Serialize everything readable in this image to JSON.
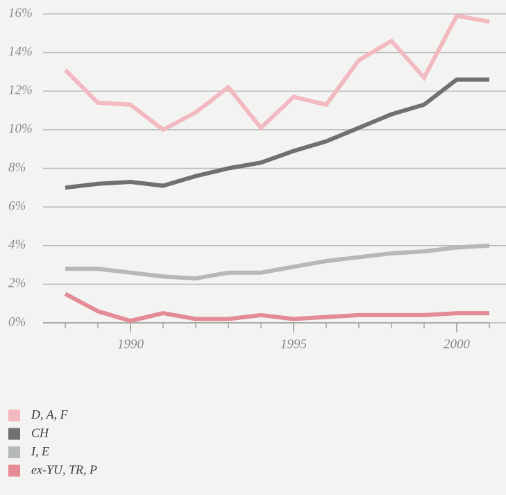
{
  "chart_data": {
    "type": "line",
    "x": [
      1988,
      1989,
      1990,
      1991,
      1992,
      1993,
      1994,
      1995,
      1996,
      1997,
      1998,
      1999,
      2000,
      2001
    ],
    "xlim": [
      1987.5,
      2001
    ],
    "xticks": [
      1990,
      1995,
      2000
    ],
    "ylim": [
      0,
      16
    ],
    "yticks": [
      {
        "value": 0,
        "label": "0%"
      },
      {
        "value": 2,
        "label": "2%"
      },
      {
        "value": 4,
        "label": "4%"
      },
      {
        "value": 6,
        "label": "6%"
      },
      {
        "value": 8,
        "label": "8%"
      },
      {
        "value": 10,
        "label": "10%"
      },
      {
        "value": 12,
        "label": "12%"
      },
      {
        "value": 14,
        "label": "14%"
      },
      {
        "value": 16,
        "label": "16%"
      }
    ],
    "grid": true,
    "legend": "bottom-left",
    "series": [
      {
        "name": "D, A, F",
        "color": "#f2b9c1",
        "values": [
          13.1,
          11.4,
          11.3,
          10.0,
          10.9,
          12.2,
          10.1,
          11.7,
          11.3,
          13.6,
          14.6,
          12.7,
          15.9,
          15.6
        ]
      },
      {
        "name": "CH",
        "color": "#6f7071",
        "values": [
          7.0,
          7.2,
          7.3,
          7.1,
          7.6,
          8.0,
          8.3,
          8.9,
          9.4,
          10.1,
          10.8,
          11.3,
          12.6,
          12.6
        ]
      },
      {
        "name": "I, E",
        "color": "#b6b9b9",
        "values": [
          2.8,
          2.8,
          2.6,
          2.4,
          2.3,
          2.6,
          2.6,
          2.9,
          3.2,
          3.4,
          3.6,
          3.7,
          3.9,
          4.0
        ]
      },
      {
        "name": "ex-YU, TR, P",
        "color": "#e48b95",
        "values": [
          1.5,
          0.6,
          0.1,
          0.5,
          0.2,
          0.2,
          0.4,
          0.2,
          0.3,
          0.4,
          0.4,
          0.4,
          0.5,
          0.5
        ]
      }
    ]
  }
}
